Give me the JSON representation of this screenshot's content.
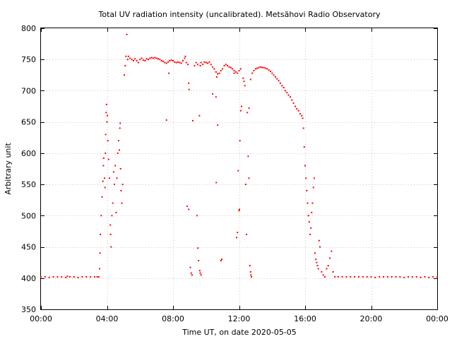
{
  "chart_data": {
    "type": "scatter",
    "title": "Total UV radiation intensity (uncalibrated). Metsähovi Radio Observatory",
    "xlabel": "Time UT, on date 2020-05-05",
    "ylabel": "Arbitrary unit",
    "xlim": [
      0,
      24
    ],
    "ylim": [
      350,
      800
    ],
    "x_ticks": [
      0,
      4,
      8,
      12,
      16,
      20,
      24
    ],
    "x_tick_labels": [
      "00:00",
      "04:00",
      "08:00",
      "12:00",
      "16:00",
      "20:00",
      "00:00"
    ],
    "y_ticks": [
      350,
      400,
      450,
      500,
      550,
      600,
      650,
      700,
      750,
      800
    ],
    "y_tick_labels": [
      "350",
      "400",
      "450",
      "500",
      "550",
      "600",
      "650",
      "700",
      "750",
      "800"
    ],
    "grid": true,
    "legend": "none",
    "marker_color": "#ff0000",
    "series": [
      {
        "x_unit": "hours UT",
        "points": [
          [
            0.0,
            402
          ],
          [
            0.25,
            402
          ],
          [
            0.5,
            401
          ],
          [
            0.75,
            402
          ],
          [
            1.0,
            402
          ],
          [
            1.25,
            402
          ],
          [
            1.5,
            401
          ],
          [
            1.6,
            403
          ],
          [
            1.75,
            402
          ],
          [
            2.0,
            402
          ],
          [
            2.25,
            401
          ],
          [
            2.5,
            402
          ],
          [
            2.75,
            402
          ],
          [
            3.0,
            402
          ],
          [
            3.25,
            402
          ],
          [
            3.4,
            402
          ],
          [
            3.5,
            402
          ],
          [
            3.55,
            415
          ],
          [
            3.58,
            440
          ],
          [
            3.6,
            470
          ],
          [
            3.65,
            500
          ],
          [
            3.7,
            530
          ],
          [
            3.75,
            555
          ],
          [
            3.78,
            580
          ],
          [
            3.8,
            592
          ],
          [
            3.85,
            560
          ],
          [
            3.88,
            545
          ],
          [
            3.9,
            600
          ],
          [
            3.92,
            630
          ],
          [
            3.95,
            665
          ],
          [
            3.97,
            678
          ],
          [
            4.0,
            650
          ],
          [
            4.02,
            660
          ],
          [
            4.05,
            620
          ],
          [
            4.1,
            590
          ],
          [
            4.15,
            560
          ],
          [
            4.2,
            485
          ],
          [
            4.22,
            470
          ],
          [
            4.25,
            450
          ],
          [
            4.3,
            500
          ],
          [
            4.35,
            520
          ],
          [
            4.4,
            570
          ],
          [
            4.45,
            550
          ],
          [
            4.5,
            580
          ],
          [
            4.55,
            505
          ],
          [
            4.6,
            560
          ],
          [
            4.65,
            600
          ],
          [
            4.7,
            620
          ],
          [
            4.75,
            605
          ],
          [
            4.78,
            640
          ],
          [
            4.8,
            648
          ],
          [
            4.82,
            575
          ],
          [
            4.85,
            540
          ],
          [
            4.9,
            520
          ],
          [
            4.95,
            550
          ],
          [
            5.05,
            725
          ],
          [
            5.1,
            740
          ],
          [
            5.15,
            755
          ],
          [
            5.2,
            790
          ],
          [
            5.25,
            750
          ],
          [
            5.3,
            755
          ],
          [
            5.4,
            752
          ],
          [
            5.5,
            750
          ],
          [
            5.6,
            748
          ],
          [
            5.7,
            751
          ],
          [
            5.8,
            748
          ],
          [
            5.9,
            745
          ],
          [
            6.0,
            750
          ],
          [
            6.1,
            752
          ],
          [
            6.2,
            749
          ],
          [
            6.3,
            748
          ],
          [
            6.4,
            751
          ],
          [
            6.5,
            750
          ],
          [
            6.6,
            752
          ],
          [
            6.7,
            753
          ],
          [
            6.8,
            752
          ],
          [
            6.9,
            753
          ],
          [
            7.0,
            752
          ],
          [
            7.1,
            751
          ],
          [
            7.2,
            750
          ],
          [
            7.3,
            748
          ],
          [
            7.4,
            747
          ],
          [
            7.5,
            745
          ],
          [
            7.6,
            744
          ],
          [
            7.7,
            746
          ],
          [
            7.8,
            748
          ],
          [
            7.9,
            749
          ],
          [
            8.0,
            748
          ],
          [
            8.1,
            746
          ],
          [
            8.2,
            745
          ],
          [
            8.3,
            746
          ],
          [
            8.4,
            745
          ],
          [
            8.5,
            744
          ],
          [
            8.6,
            748
          ],
          [
            8.7,
            752
          ],
          [
            8.75,
            755
          ],
          [
            8.8,
            745
          ],
          [
            8.9,
            742
          ],
          [
            7.75,
            728
          ],
          [
            7.6,
            653
          ],
          [
            8.85,
            515
          ],
          [
            8.95,
            510
          ],
          [
            8.95,
            712
          ],
          [
            8.97,
            702
          ],
          [
            9.05,
            417
          ],
          [
            9.1,
            408
          ],
          [
            9.15,
            405
          ],
          [
            9.2,
            652
          ],
          [
            9.3,
            740
          ],
          [
            9.4,
            745
          ],
          [
            9.5,
            742
          ],
          [
            9.6,
            660
          ],
          [
            9.65,
            740
          ],
          [
            9.7,
            745
          ],
          [
            9.8,
            742
          ],
          [
            9.9,
            746
          ],
          [
            10.0,
            745
          ],
          [
            10.1,
            744
          ],
          [
            10.2,
            746
          ],
          [
            10.3,
            742
          ],
          [
            10.4,
            738
          ],
          [
            10.5,
            735
          ],
          [
            10.6,
            730
          ],
          [
            10.65,
            722
          ],
          [
            10.7,
            727
          ],
          [
            10.8,
            728
          ],
          [
            10.9,
            732
          ],
          [
            11.0,
            735
          ],
          [
            11.1,
            740
          ],
          [
            11.2,
            742
          ],
          [
            11.3,
            740
          ],
          [
            11.4,
            738
          ],
          [
            11.5,
            737
          ],
          [
            11.6,
            735
          ],
          [
            11.7,
            732
          ],
          [
            11.8,
            730
          ],
          [
            11.9,
            728
          ],
          [
            12.0,
            732
          ],
          [
            12.1,
            735
          ],
          [
            9.45,
            500
          ],
          [
            9.5,
            448
          ],
          [
            9.55,
            428
          ],
          [
            9.62,
            412
          ],
          [
            9.65,
            408
          ],
          [
            9.7,
            405
          ],
          [
            10.4,
            695
          ],
          [
            10.6,
            690
          ],
          [
            10.62,
            553
          ],
          [
            10.7,
            645
          ],
          [
            10.9,
            428
          ],
          [
            10.95,
            430
          ],
          [
            11.7,
            728
          ],
          [
            11.95,
            572
          ],
          [
            12.0,
            508
          ],
          [
            12.02,
            510
          ],
          [
            12.05,
            620
          ],
          [
            12.1,
            668
          ],
          [
            12.15,
            675
          ],
          [
            12.25,
            720
          ],
          [
            12.3,
            715
          ],
          [
            12.35,
            708
          ],
          [
            12.4,
            550
          ],
          [
            12.45,
            470
          ],
          [
            12.5,
            665
          ],
          [
            12.55,
            595
          ],
          [
            12.6,
            560
          ],
          [
            12.65,
            420
          ],
          [
            12.7,
            410
          ],
          [
            12.72,
            405
          ],
          [
            12.75,
            402
          ],
          [
            11.85,
            465
          ],
          [
            11.9,
            473
          ],
          [
            12.6,
            672
          ],
          [
            12.7,
            718
          ],
          [
            12.8,
            728
          ],
          [
            12.9,
            732
          ],
          [
            13.0,
            735
          ],
          [
            13.1,
            736
          ],
          [
            13.2,
            737
          ],
          [
            13.3,
            738
          ],
          [
            13.4,
            737
          ],
          [
            13.5,
            737
          ],
          [
            13.6,
            736
          ],
          [
            13.7,
            735
          ],
          [
            13.8,
            733
          ],
          [
            13.9,
            731
          ],
          [
            14.0,
            728
          ],
          [
            14.1,
            725
          ],
          [
            14.2,
            722
          ],
          [
            14.3,
            719
          ],
          [
            14.4,
            716
          ],
          [
            14.5,
            712
          ],
          [
            14.6,
            708
          ],
          [
            14.7,
            705
          ],
          [
            14.8,
            700
          ],
          [
            14.9,
            697
          ],
          [
            15.0,
            693
          ],
          [
            15.1,
            690
          ],
          [
            15.2,
            685
          ],
          [
            15.3,
            680
          ],
          [
            15.4,
            675
          ],
          [
            15.5,
            671
          ],
          [
            15.6,
            668
          ],
          [
            15.7,
            663
          ],
          [
            15.8,
            660
          ],
          [
            15.85,
            656
          ],
          [
            15.9,
            640
          ],
          [
            15.95,
            610
          ],
          [
            16.0,
            580
          ],
          [
            16.05,
            560
          ],
          [
            16.1,
            540
          ],
          [
            16.15,
            520
          ],
          [
            16.2,
            500
          ],
          [
            16.25,
            490
          ],
          [
            16.3,
            470
          ],
          [
            16.35,
            480
          ],
          [
            16.4,
            505
          ],
          [
            16.45,
            520
          ],
          [
            16.5,
            545
          ],
          [
            16.55,
            560
          ],
          [
            16.6,
            440
          ],
          [
            16.65,
            430
          ],
          [
            16.7,
            425
          ],
          [
            16.75,
            420
          ],
          [
            16.8,
            415
          ],
          [
            16.85,
            460
          ],
          [
            16.9,
            450
          ],
          [
            17.0,
            410
          ],
          [
            17.1,
            405
          ],
          [
            17.2,
            402
          ],
          [
            17.3,
            415
          ],
          [
            17.4,
            420
          ],
          [
            17.5,
            432
          ],
          [
            17.6,
            443
          ],
          [
            17.7,
            410
          ],
          [
            17.8,
            402
          ],
          [
            18.0,
            402
          ],
          [
            18.25,
            402
          ],
          [
            18.5,
            402
          ],
          [
            18.75,
            402
          ],
          [
            19.0,
            402
          ],
          [
            19.25,
            402
          ],
          [
            19.5,
            402
          ],
          [
            19.75,
            402
          ],
          [
            20.0,
            402
          ],
          [
            20.25,
            401
          ],
          [
            20.5,
            402
          ],
          [
            20.75,
            402
          ],
          [
            21.0,
            402
          ],
          [
            21.25,
            402
          ],
          [
            21.5,
            402
          ],
          [
            21.75,
            402
          ],
          [
            22.0,
            401
          ],
          [
            22.25,
            402
          ],
          [
            22.5,
            402
          ],
          [
            22.75,
            402
          ],
          [
            23.0,
            401
          ],
          [
            23.25,
            402
          ],
          [
            23.5,
            401
          ],
          [
            23.75,
            402
          ],
          [
            24.0,
            402
          ]
        ]
      }
    ]
  }
}
